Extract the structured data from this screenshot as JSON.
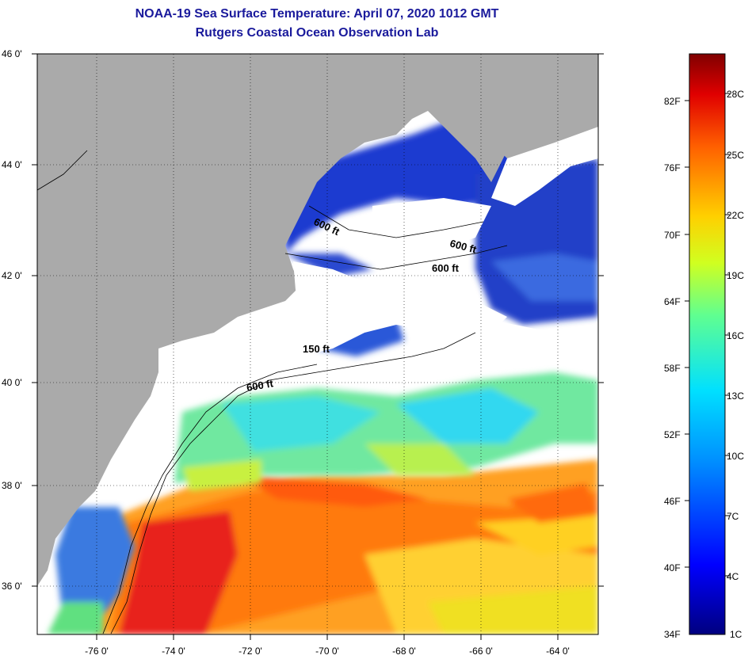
{
  "title": "NOAA-19 Sea Surface Temperature:  April 07, 2020 1012 GMT",
  "subtitle": "Rutgers Coastal Ocean Observation Lab",
  "map": {
    "lat_labels": [
      "46 0'",
      "44 0'",
      "42 0'",
      "40 0'",
      "38 0'",
      "36 0'"
    ],
    "lon_labels": [
      "-76 0'",
      "-74 0'",
      "-72 0'",
      "-70 0'",
      "-68 0'",
      "-66 0'",
      "-64 0'"
    ],
    "contour_labels": [
      "600 ft",
      "600 ft",
      "600 ft",
      "150 ft",
      "600 ft"
    ],
    "colors": {
      "land": "#aaaaaa",
      "cloud": "#ffffff",
      "cold": "#1e3ad0",
      "warm": "#ff6a00",
      "hot": "#e8201c"
    }
  },
  "colorbar": {
    "fahrenheit": [
      "82F",
      "76F",
      "70F",
      "64F",
      "58F",
      "52F",
      "46F",
      "40F",
      "34F"
    ],
    "celsius": [
      "28C",
      "25C",
      "22C",
      "19C",
      "16C",
      "13C",
      "10C",
      "7C",
      "4C",
      "1C"
    ]
  }
}
